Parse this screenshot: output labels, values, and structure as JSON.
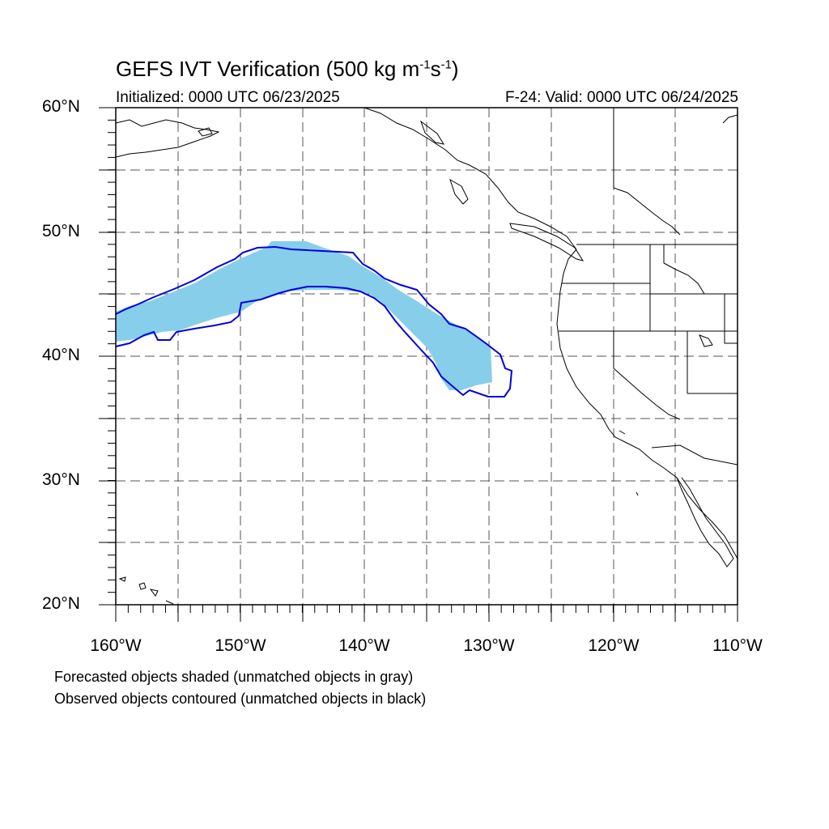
{
  "title": {
    "main": "GEFS IVT Verification (500 kg m",
    "sup1": "-1",
    "mid": "s",
    "sup2": "-1",
    "end": ")"
  },
  "initialized": "Initialized: 0000 UTC 06/23/2025",
  "valid": "F-24: Valid: 0000 UTC 06/24/2025",
  "lat_labels": [
    "60°N",
    "50°N",
    "40°N",
    "30°N",
    "20°N"
  ],
  "lon_labels": [
    "160°W",
    "150°W",
    "140°W",
    "130°W",
    "120°W",
    "110°W"
  ],
  "footnotes": [
    "Forecasted objects shaded (unmatched objects in gray)",
    "Observed objects contoured (unmatched objects in black)"
  ],
  "map_extent": {
    "lon_min": -160,
    "lon_max": -110,
    "lat_min": 20,
    "lat_max": 60
  },
  "colors": {
    "forecast_fill": "#87ceeb",
    "observed_contour": "#0000dd",
    "coastline": "#000000",
    "grid": "#555555"
  }
}
